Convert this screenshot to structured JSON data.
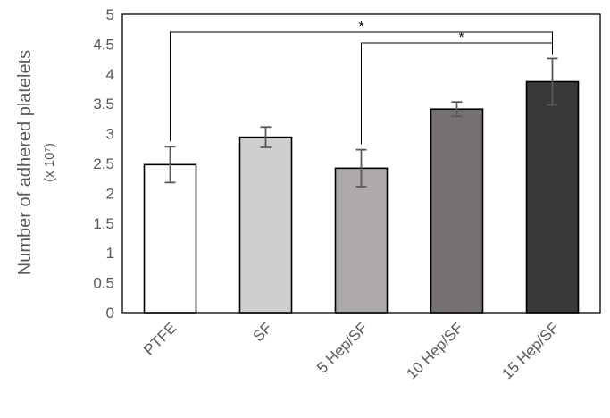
{
  "chart_data": {
    "type": "bar",
    "categories": [
      "PTFE",
      "SF",
      "5 Hep/SF",
      "10 Hep/SF",
      "15 Hep/SF"
    ],
    "values": [
      2.48,
      2.94,
      2.42,
      3.41,
      3.87
    ],
    "errors": [
      0.3,
      0.17,
      0.31,
      0.12,
      0.39
    ],
    "bar_colors": [
      "#ffffff",
      "#d0cece",
      "#aeaaaa",
      "#767171",
      "#3b3838"
    ],
    "ylabel": "Number of adhered platelets",
    "ylabel_unit": "(x 10⁷)",
    "ylim": [
      0,
      5
    ],
    "yticks": [
      "0",
      "0.5",
      "1",
      "1.5",
      "2",
      "2.5",
      "3",
      "3.5",
      "4",
      "4.5",
      "5"
    ],
    "grid": false,
    "significance": [
      {
        "from": 0,
        "to": 4,
        "label": "*"
      },
      {
        "from": 2,
        "to": 4,
        "label": "*"
      }
    ]
  }
}
